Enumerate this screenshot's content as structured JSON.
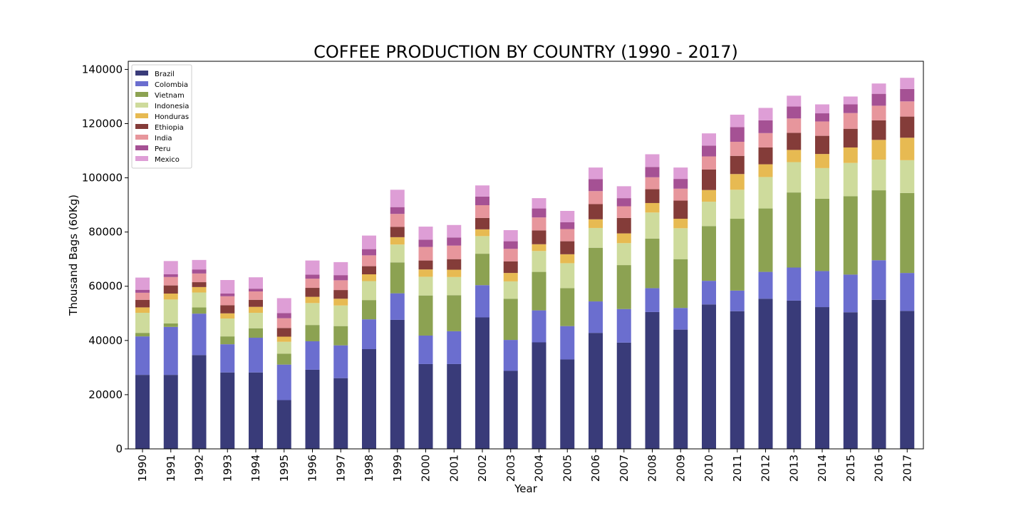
{
  "chart_data": {
    "type": "bar",
    "stacked": true,
    "title": "COFFEE PRODUCTION BY COUNTRY (1990 - 2017)",
    "xlabel": "Year",
    "ylabel": "Thousand Bags (60Kg)",
    "ylim": [
      0,
      143000
    ],
    "yticks": [
      0,
      20000,
      40000,
      60000,
      80000,
      100000,
      120000,
      140000
    ],
    "grid": false,
    "legend_position": "top-left",
    "categories": [
      "1990",
      "1991",
      "1992",
      "1993",
      "1994",
      "1995",
      "1996",
      "1997",
      "1998",
      "1999",
      "2000",
      "2001",
      "2002",
      "2003",
      "2004",
      "2005",
      "2006",
      "2007",
      "2008",
      "2009",
      "2010",
      "2011",
      "2012",
      "2013",
      "2014",
      "2015",
      "2016",
      "2017"
    ],
    "series": [
      {
        "name": "Brazil",
        "color": "#393b79",
        "values": [
          27300,
          27300,
          34600,
          28200,
          28200,
          18000,
          29200,
          26100,
          36800,
          47600,
          31300,
          31300,
          48500,
          28800,
          39300,
          33000,
          42800,
          39200,
          50500,
          44000,
          53300,
          50800,
          55400,
          54700,
          52300,
          50400,
          55000,
          50900
        ]
      },
      {
        "name": "Colombia",
        "color": "#6b6ecf",
        "values": [
          14200,
          17700,
          15300,
          10400,
          12800,
          13100,
          10500,
          12100,
          11000,
          9800,
          10500,
          12100,
          11900,
          11400,
          11800,
          12300,
          11600,
          12400,
          8800,
          8000,
          8700,
          7600,
          9900,
          12200,
          13300,
          13900,
          14600,
          14000
        ]
      },
      {
        "name": "Vietnam",
        "color": "#8ca252",
        "values": [
          1300,
          1300,
          2300,
          2900,
          3500,
          4000,
          6000,
          7100,
          7100,
          11400,
          14800,
          13300,
          11600,
          15200,
          14200,
          14000,
          19800,
          16200,
          18300,
          18000,
          20200,
          26500,
          23400,
          27700,
          26700,
          28900,
          25800,
          29500
        ]
      },
      {
        "name": "Indonesia",
        "color": "#cedb9c",
        "values": [
          7400,
          8800,
          5500,
          6600,
          5700,
          4400,
          8100,
          7600,
          7000,
          6600,
          6900,
          6700,
          6500,
          6400,
          7700,
          9200,
          7300,
          8100,
          9600,
          11400,
          9000,
          10700,
          11600,
          11200,
          11300,
          12300,
          11300,
          12100
        ]
      },
      {
        "name": "Honduras",
        "color": "#e7ba52",
        "values": [
          2000,
          2200,
          2000,
          1900,
          2200,
          1900,
          2300,
          2500,
          2500,
          2700,
          2700,
          2700,
          2500,
          3100,
          2500,
          3300,
          3200,
          3600,
          3500,
          3500,
          4300,
          5800,
          4700,
          4500,
          5200,
          5700,
          7300,
          8300
        ]
      },
      {
        "name": "Ethiopia",
        "color": "#843c39",
        "values": [
          2800,
          3000,
          1800,
          3000,
          2600,
          3200,
          3300,
          3200,
          3000,
          3800,
          3300,
          3900,
          4200,
          4300,
          5100,
          4800,
          5600,
          5700,
          5100,
          6700,
          7600,
          6700,
          6200,
          6300,
          6700,
          6900,
          7200,
          7800
        ]
      },
      {
        "name": "India",
        "color": "#e7969c",
        "values": [
          2600,
          3100,
          3200,
          3300,
          3100,
          3600,
          3400,
          3600,
          4000,
          4800,
          5000,
          5000,
          4700,
          4600,
          4800,
          4500,
          4800,
          4300,
          4400,
          4400,
          4800,
          5200,
          5300,
          5300,
          5300,
          5800,
          5400,
          5600
        ]
      },
      {
        "name": "Peru",
        "color": "#a55194",
        "values": [
          1100,
          1000,
          1500,
          1000,
          1000,
          1900,
          1500,
          1900,
          2300,
          2500,
          2700,
          3000,
          3200,
          2800,
          3300,
          2500,
          4400,
          3000,
          3800,
          3600,
          4000,
          5400,
          4700,
          4400,
          3000,
          3200,
          4400,
          4600
        ]
      },
      {
        "name": "Mexico",
        "color": "#de9ed6",
        "values": [
          4500,
          4900,
          3500,
          5000,
          4200,
          5500,
          5200,
          4800,
          5000,
          6400,
          4800,
          4600,
          4100,
          4100,
          3800,
          4200,
          4300,
          4400,
          4700,
          4200,
          4500,
          4600,
          4600,
          4000,
          3300,
          2900,
          3800,
          4100
        ]
      }
    ]
  }
}
